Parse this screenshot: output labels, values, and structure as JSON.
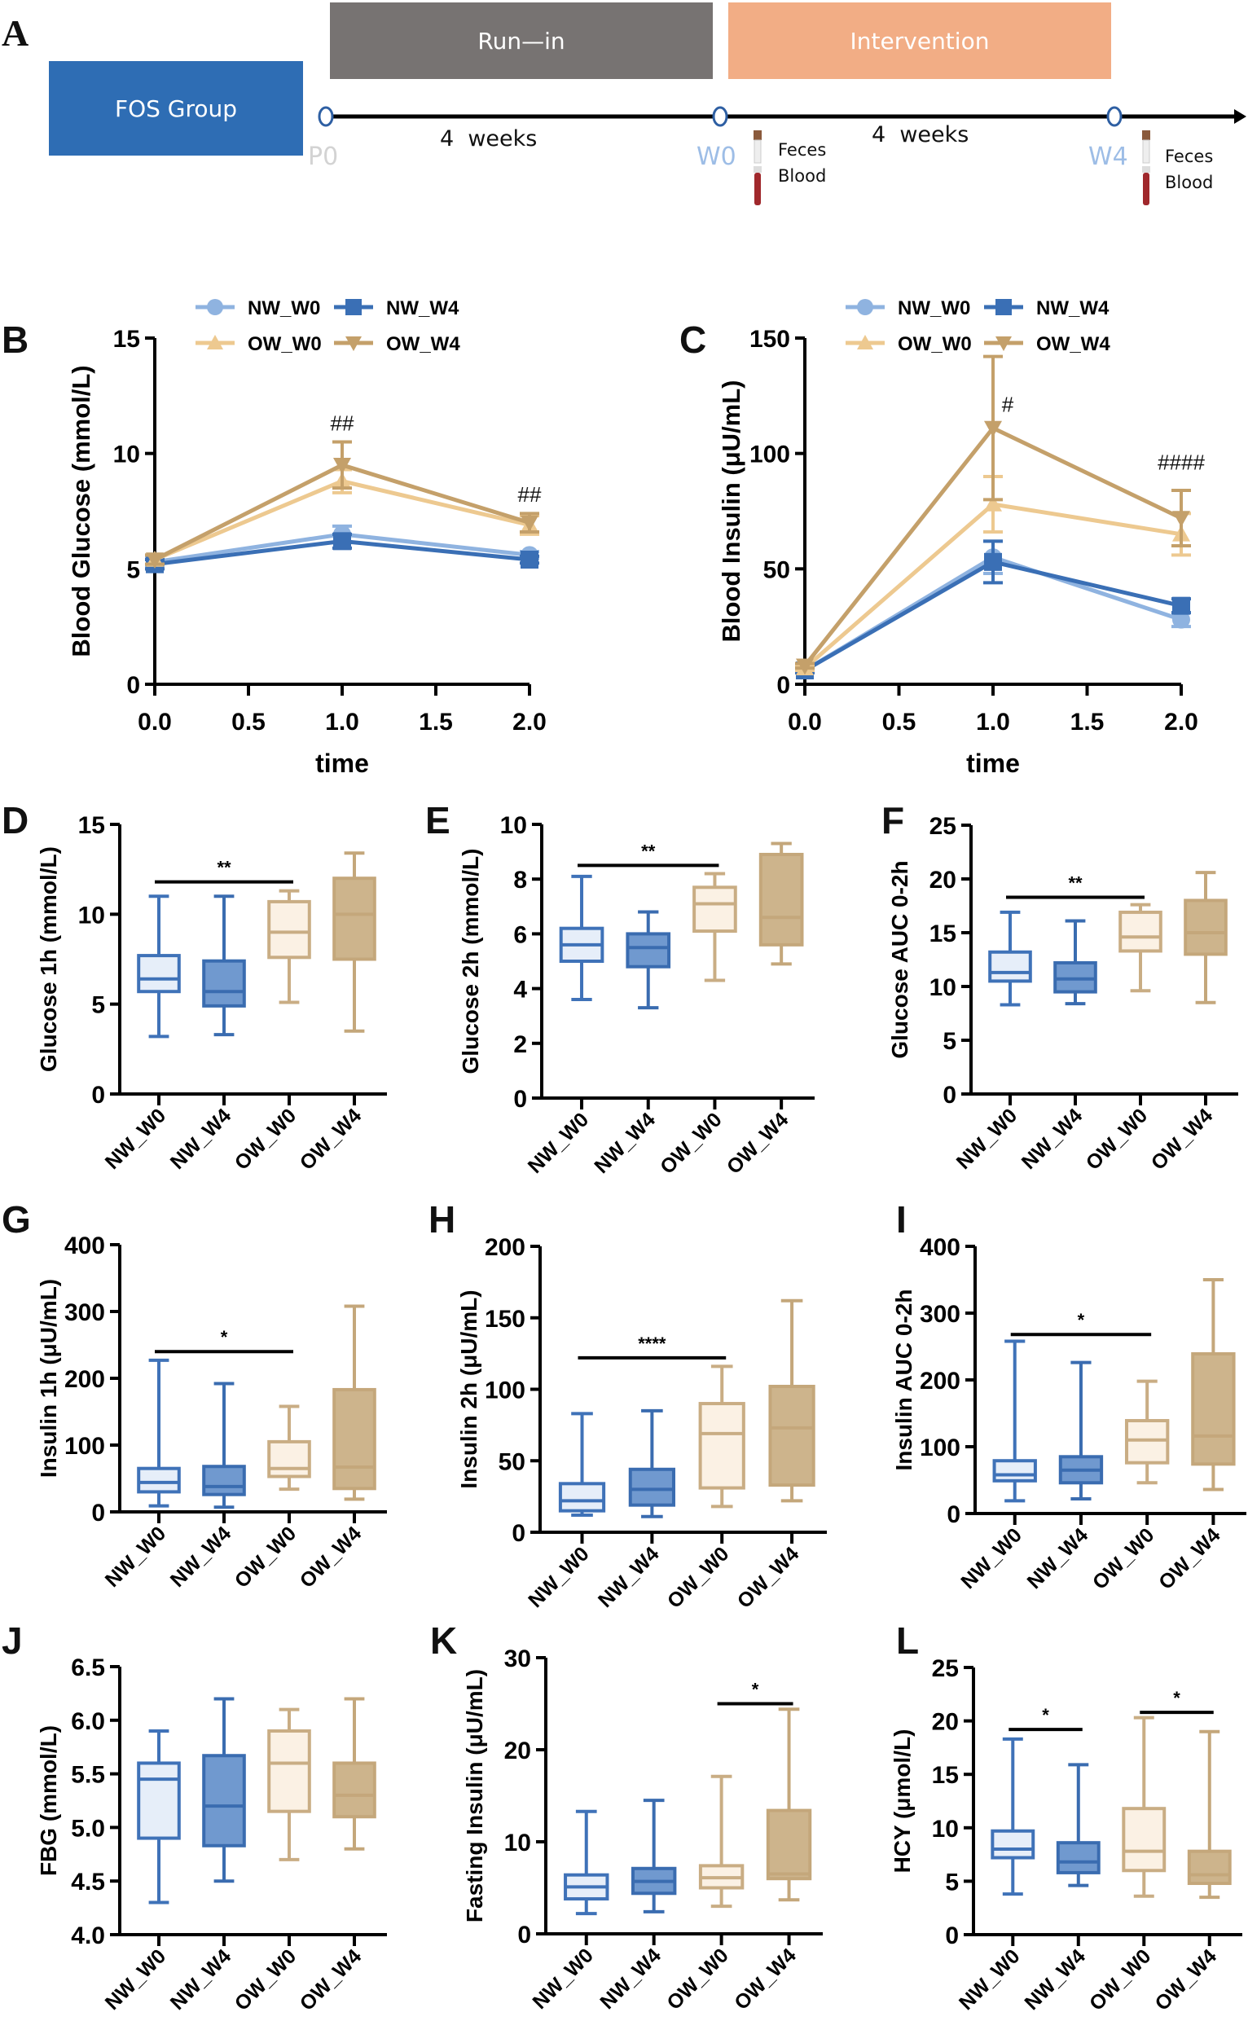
{
  "panel_a": {
    "letter": "A",
    "group_label": "FOS Group",
    "phases": [
      {
        "label": "Run—in",
        "color": "#777372"
      },
      {
        "label": "Intervention",
        "color": "#f2ad85"
      }
    ],
    "timepoints": [
      {
        "label": "P0",
        "color": "#d3d3d3"
      },
      {
        "label": "W0",
        "color": "#9dbde6"
      },
      {
        "label": "W4",
        "color": "#9dbde6"
      }
    ],
    "durations": [
      "4  weeks",
      "4  weeks"
    ],
    "samples": [
      {
        "line1": "Feces",
        "line2": "Blood"
      },
      {
        "line1": "Feces",
        "line2": "Blood"
      }
    ]
  },
  "groups": [
    "NW_W0",
    "NW_W4",
    "OW_W0",
    "OW_W4"
  ],
  "colors": {
    "NW_W0": {
      "line": "#8fb3e0",
      "box_fill": "#e6eef9",
      "box_stroke": "#3f72b8"
    },
    "NW_W4": {
      "line": "#3a6fb5",
      "box_fill": "#7099cf",
      "box_stroke": "#3a6cb0"
    },
    "OW_W0": {
      "line": "#edc990",
      "box_fill": "#fbf1e4",
      "box_stroke": "#c9ad84"
    },
    "OW_W4": {
      "line": "#c4a06a",
      "box_fill": "#cdb48c",
      "box_stroke": "#c4a77b"
    }
  },
  "chart_data": [
    {
      "id": "B",
      "letter": "B",
      "type": "line",
      "title": "",
      "xlabel": "time",
      "ylabel": "Blood Glucose (mmol/L)",
      "x": [
        0,
        1,
        2
      ],
      "xlim": [
        0,
        2
      ],
      "xticks": [
        "0.0",
        "0.5",
        "1.0",
        "1.5",
        "2.0"
      ],
      "ylim": [
        0,
        15
      ],
      "yticks": [
        0,
        5,
        10,
        15
      ],
      "legend": "top",
      "series": [
        {
          "name": "NW_W0",
          "marker": "circle",
          "values": [
            5.3,
            6.5,
            5.6
          ],
          "err": [
            0.2,
            0.35,
            0.15
          ]
        },
        {
          "name": "NW_W4",
          "marker": "square",
          "values": [
            5.2,
            6.2,
            5.4
          ],
          "err": [
            0.2,
            0.3,
            0.15
          ]
        },
        {
          "name": "OW_W0",
          "marker": "triangle-up",
          "values": [
            5.4,
            8.8,
            6.9
          ],
          "err": [
            0.2,
            0.5,
            0.4
          ]
        },
        {
          "name": "OW_W4",
          "marker": "triangle-down",
          "values": [
            5.4,
            9.5,
            7.0
          ],
          "err": [
            0.2,
            1.0,
            0.4
          ]
        }
      ],
      "annotations": [
        {
          "x": 1,
          "y": 11.0,
          "text": "##"
        },
        {
          "x": 2,
          "y": 7.9,
          "text": "##"
        }
      ]
    },
    {
      "id": "C",
      "letter": "C",
      "type": "line",
      "title": "",
      "xlabel": "time",
      "ylabel": "Blood Insulin (μU/mL)",
      "x": [
        0,
        1,
        2
      ],
      "xlim": [
        0,
        2
      ],
      "xticks": [
        "0.0",
        "0.5",
        "1.0",
        "1.5",
        "2.0"
      ],
      "ylim": [
        0,
        150
      ],
      "yticks": [
        0,
        50,
        100,
        150
      ],
      "legend": "top",
      "series": [
        {
          "name": "NW_W0",
          "marker": "circle",
          "values": [
            6,
            55,
            28
          ],
          "err": [
            1,
            7,
            3
          ]
        },
        {
          "name": "NW_W4",
          "marker": "square",
          "values": [
            6,
            53,
            34
          ],
          "err": [
            1,
            9,
            3
          ]
        },
        {
          "name": "OW_W0",
          "marker": "triangle-up",
          "values": [
            7,
            78,
            65
          ],
          "err": [
            1,
            12,
            9
          ]
        },
        {
          "name": "OW_W4",
          "marker": "triangle-down",
          "values": [
            8,
            111,
            72
          ],
          "err": [
            1,
            31,
            12
          ]
        }
      ],
      "annotations": [
        {
          "x": 1,
          "y": 118,
          "text": "#"
        },
        {
          "x": 2,
          "y": 93,
          "text": "####"
        }
      ]
    },
    {
      "id": "D",
      "letter": "D",
      "type": "box",
      "ylabel": "Glucose 1h (mmol/L)",
      "ylim": [
        0,
        15
      ],
      "yticks": [
        0,
        5,
        10,
        15
      ],
      "boxes": [
        {
          "group": "NW_W0",
          "min": 3.2,
          "q1": 5.7,
          "median": 6.4,
          "q3": 7.7,
          "max": 11.0
        },
        {
          "group": "NW_W4",
          "min": 3.3,
          "q1": 4.9,
          "median": 5.7,
          "q3": 7.4,
          "max": 11.0
        },
        {
          "group": "OW_W0",
          "min": 5.1,
          "q1": 7.6,
          "median": 9.0,
          "q3": 10.7,
          "max": 11.3
        },
        {
          "group": "OW_W4",
          "min": 3.5,
          "q1": 7.5,
          "median": 10.0,
          "q3": 12.0,
          "max": 13.4
        }
      ],
      "significance": [
        {
          "from": 0,
          "to": 2,
          "y": 11.8,
          "label": "**"
        }
      ]
    },
    {
      "id": "E",
      "letter": "E",
      "type": "box",
      "ylabel": "Glucose 2h (mmol/L)",
      "ylim": [
        0,
        10
      ],
      "yticks": [
        0,
        2,
        4,
        6,
        8,
        10
      ],
      "boxes": [
        {
          "group": "NW_W0",
          "min": 3.6,
          "q1": 5.0,
          "median": 5.6,
          "q3": 6.2,
          "max": 8.1
        },
        {
          "group": "NW_W4",
          "min": 3.3,
          "q1": 4.8,
          "median": 5.5,
          "q3": 6.0,
          "max": 6.8
        },
        {
          "group": "OW_W0",
          "min": 4.3,
          "q1": 6.1,
          "median": 7.1,
          "q3": 7.7,
          "max": 8.2
        },
        {
          "group": "OW_W4",
          "min": 4.9,
          "q1": 5.6,
          "median": 6.6,
          "q3": 8.9,
          "max": 9.3
        }
      ],
      "significance": [
        {
          "from": 0,
          "to": 2,
          "y": 8.5,
          "label": "**"
        }
      ]
    },
    {
      "id": "F",
      "letter": "F",
      "type": "box",
      "ylabel": "Glucose AUC 0-2h",
      "ylim": [
        0,
        25
      ],
      "yticks": [
        0,
        5,
        10,
        15,
        20,
        25
      ],
      "boxes": [
        {
          "group": "NW_W0",
          "min": 8.3,
          "q1": 10.5,
          "median": 11.3,
          "q3": 13.2,
          "max": 16.9
        },
        {
          "group": "NW_W4",
          "min": 8.4,
          "q1": 9.5,
          "median": 10.7,
          "q3": 12.2,
          "max": 16.1
        },
        {
          "group": "OW_W0",
          "min": 9.6,
          "q1": 13.3,
          "median": 14.6,
          "q3": 16.9,
          "max": 17.6
        },
        {
          "group": "OW_W4",
          "min": 8.5,
          "q1": 13.0,
          "median": 15.0,
          "q3": 18.0,
          "max": 20.6
        }
      ],
      "significance": [
        {
          "from": 0,
          "to": 2,
          "y": 18.3,
          "label": "**"
        }
      ]
    },
    {
      "id": "G",
      "letter": "G",
      "type": "box",
      "ylabel": "Insulin 1h (μU/mL)",
      "ylim": [
        0,
        400
      ],
      "yticks": [
        0,
        100,
        200,
        300,
        400
      ],
      "boxes": [
        {
          "group": "NW_W0",
          "min": 9,
          "q1": 30,
          "median": 44,
          "q3": 65,
          "max": 227
        },
        {
          "group": "NW_W4",
          "min": 7,
          "q1": 26,
          "median": 38,
          "q3": 68,
          "max": 192
        },
        {
          "group": "OW_W0",
          "min": 34,
          "q1": 53,
          "median": 65,
          "q3": 105,
          "max": 158
        },
        {
          "group": "OW_W4",
          "min": 19,
          "q1": 35,
          "median": 67,
          "q3": 183,
          "max": 308
        }
      ],
      "significance": [
        {
          "from": 0,
          "to": 2,
          "y": 240,
          "label": "*"
        }
      ]
    },
    {
      "id": "H",
      "letter": "H",
      "type": "box",
      "ylabel": "Insulin 2h (μU/mL)",
      "ylim": [
        0,
        200
      ],
      "yticks": [
        0,
        50,
        100,
        150,
        200
      ],
      "boxes": [
        {
          "group": "NW_W0",
          "min": 12,
          "q1": 15,
          "median": 22,
          "q3": 34,
          "max": 83
        },
        {
          "group": "NW_W4",
          "min": 11,
          "q1": 19,
          "median": 30,
          "q3": 44,
          "max": 85
        },
        {
          "group": "OW_W0",
          "min": 18,
          "q1": 31,
          "median": 69,
          "q3": 90,
          "max": 116
        },
        {
          "group": "OW_W4",
          "min": 22,
          "q1": 33,
          "median": 73,
          "q3": 102,
          "max": 162
        }
      ],
      "significance": [
        {
          "from": 0,
          "to": 2,
          "y": 122,
          "label": "****"
        }
      ]
    },
    {
      "id": "I",
      "letter": "I",
      "type": "box",
      "ylabel": "Insulin AUC 0-2h",
      "ylim": [
        0,
        400
      ],
      "yticks": [
        0,
        100,
        200,
        300,
        400
      ],
      "boxes": [
        {
          "group": "NW_W0",
          "min": 19,
          "q1": 49,
          "median": 58,
          "q3": 79,
          "max": 258
        },
        {
          "group": "NW_W4",
          "min": 22,
          "q1": 46,
          "median": 65,
          "q3": 85,
          "max": 226
        },
        {
          "group": "OW_W0",
          "min": 46,
          "q1": 76,
          "median": 110,
          "q3": 139,
          "max": 198
        },
        {
          "group": "OW_W4",
          "min": 36,
          "q1": 74,
          "median": 116,
          "q3": 239,
          "max": 350
        }
      ],
      "significance": [
        {
          "from": 0,
          "to": 2,
          "y": 268,
          "label": "*"
        }
      ]
    },
    {
      "id": "J",
      "letter": "J",
      "type": "box",
      "ylabel": "FBG (mmol/L)",
      "ylim": [
        4.0,
        6.5
      ],
      "yticks": [
        "4.0",
        "4.5",
        "5.0",
        "5.5",
        "6.0",
        "6.5"
      ],
      "boxes": [
        {
          "group": "NW_W0",
          "min": 4.3,
          "q1": 4.9,
          "median": 5.45,
          "q3": 5.6,
          "max": 5.9
        },
        {
          "group": "NW_W4",
          "min": 4.5,
          "q1": 4.83,
          "median": 5.2,
          "q3": 5.67,
          "max": 6.2
        },
        {
          "group": "OW_W0",
          "min": 4.7,
          "q1": 5.15,
          "median": 5.6,
          "q3": 5.9,
          "max": 6.1
        },
        {
          "group": "OW_W4",
          "min": 4.8,
          "q1": 5.1,
          "median": 5.3,
          "q3": 5.6,
          "max": 6.2
        }
      ],
      "significance": []
    },
    {
      "id": "K",
      "letter": "K",
      "type": "box",
      "ylabel": "Fasting Insulin (μU/mL)",
      "ylim": [
        0,
        30
      ],
      "yticks": [
        0,
        10,
        20,
        30
      ],
      "boxes": [
        {
          "group": "NW_W0",
          "min": 2.2,
          "q1": 3.8,
          "median": 5.1,
          "q3": 6.4,
          "max": 13.3
        },
        {
          "group": "NW_W4",
          "min": 2.4,
          "q1": 4.4,
          "median": 5.7,
          "q3": 7.1,
          "max": 14.5
        },
        {
          "group": "OW_W0",
          "min": 3.0,
          "q1": 5.0,
          "median": 6.1,
          "q3": 7.4,
          "max": 17.1
        },
        {
          "group": "OW_W4",
          "min": 3.7,
          "q1": 6.0,
          "median": 6.5,
          "q3": 13.4,
          "max": 24.4
        }
      ],
      "significance": [
        {
          "from": 2,
          "to": 3,
          "y": 25.0,
          "label": "*"
        }
      ]
    },
    {
      "id": "L",
      "letter": "L",
      "type": "box",
      "ylabel": "HCY (μmol/L)",
      "ylim": [
        0,
        25
      ],
      "yticks": [
        0,
        5,
        10,
        15,
        20,
        25
      ],
      "boxes": [
        {
          "group": "NW_W0",
          "min": 3.8,
          "q1": 7.2,
          "median": 8.0,
          "q3": 9.7,
          "max": 18.3
        },
        {
          "group": "NW_W4",
          "min": 4.6,
          "q1": 5.8,
          "median": 6.8,
          "q3": 8.6,
          "max": 15.9
        },
        {
          "group": "OW_W0",
          "min": 3.6,
          "q1": 6.0,
          "median": 7.8,
          "q3": 11.8,
          "max": 20.3
        },
        {
          "group": "OW_W4",
          "min": 3.5,
          "q1": 4.8,
          "median": 5.6,
          "q3": 7.8,
          "max": 19.0
        }
      ],
      "significance": [
        {
          "from": 0,
          "to": 1,
          "y": 19.2,
          "label": "*"
        },
        {
          "from": 2,
          "to": 3,
          "y": 20.8,
          "label": "*"
        }
      ]
    }
  ]
}
